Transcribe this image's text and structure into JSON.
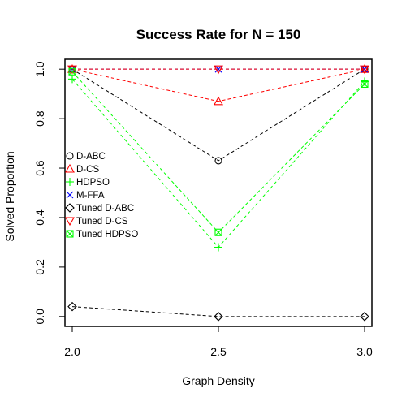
{
  "chart_data": {
    "type": "line",
    "title": "Success Rate for N = 150",
    "xlabel": "Graph Density",
    "ylabel": "Solved Proportion",
    "xlim": [
      1.975,
      3.025
    ],
    "ylim": [
      -0.04,
      1.04
    ],
    "x": [
      2.0,
      2.5,
      3.0
    ],
    "x_ticks": [
      "2.0",
      "2.5",
      "3.0"
    ],
    "y_ticks": [
      "0.0",
      "0.2",
      "0.4",
      "0.6",
      "0.8",
      "1.0"
    ],
    "legend_position": "left",
    "series": [
      {
        "name": "D-ABC",
        "values": [
          1.0,
          0.63,
          1.0
        ],
        "color": "#000000",
        "marker": "circle"
      },
      {
        "name": "D-CS",
        "values": [
          1.0,
          0.87,
          1.0
        ],
        "color": "#ff0000",
        "marker": "triangle-up"
      },
      {
        "name": "HDPSO",
        "values": [
          0.96,
          0.28,
          0.95
        ],
        "color": "#00ff00",
        "marker": "plus"
      },
      {
        "name": "M-FFA",
        "values": [
          1.0,
          1.0,
          1.0
        ],
        "color": "#0000ff",
        "marker": "cross"
      },
      {
        "name": "Tuned D-ABC",
        "values": [
          0.04,
          0.0,
          0.0
        ],
        "color": "#000000",
        "marker": "diamond"
      },
      {
        "name": "Tuned D-CS",
        "values": [
          1.0,
          1.0,
          1.0
        ],
        "color": "#ff0000",
        "marker": "triangle-down"
      },
      {
        "name": "Tuned HDPSO",
        "values": [
          0.99,
          0.34,
          0.94
        ],
        "color": "#00ff00",
        "marker": "square-cross"
      }
    ]
  }
}
